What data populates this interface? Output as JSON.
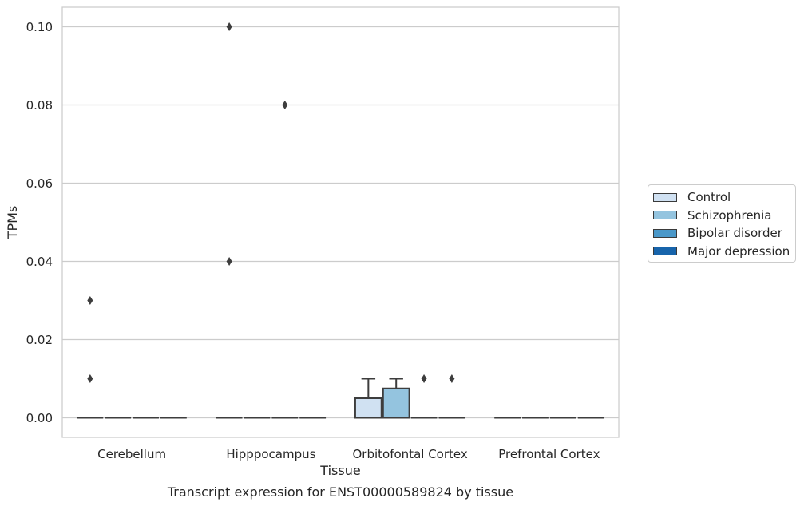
{
  "chart_data": {
    "type": "box",
    "xlabel": "Tissue",
    "ylabel": "TPMs",
    "caption": "Transcript expression for ENST00000589824 by tissue",
    "categories": [
      "Cerebellum",
      "Hipppocampus",
      "Orbitofontal Cortex",
      "Prefrontal Cortex"
    ],
    "ylim": [
      -0.005,
      0.105
    ],
    "yticks": [
      "0.00",
      "0.02",
      "0.04",
      "0.06",
      "0.08",
      "0.10"
    ],
    "grid": true,
    "legend_position": "right",
    "series": [
      {
        "name": "Control",
        "color": "#d0e1f2",
        "boxes": [
          {
            "q1": 0,
            "median": 0,
            "q3": 0,
            "whisker_low": 0,
            "whisker_high": 0,
            "outliers": [
              0.03,
              0.01
            ]
          },
          {
            "q1": 0,
            "median": 0,
            "q3": 0,
            "whisker_low": 0,
            "whisker_high": 0,
            "outliers": [
              0.1,
              0.04
            ]
          },
          {
            "q1": 0,
            "median": 0,
            "q3": 0.005,
            "whisker_low": 0,
            "whisker_high": 0.01,
            "outliers": []
          },
          {
            "q1": 0,
            "median": 0,
            "q3": 0,
            "whisker_low": 0,
            "whisker_high": 0,
            "outliers": []
          }
        ]
      },
      {
        "name": "Schizophrenia",
        "color": "#94c4df",
        "boxes": [
          {
            "q1": 0,
            "median": 0,
            "q3": 0,
            "whisker_low": 0,
            "whisker_high": 0,
            "outliers": []
          },
          {
            "q1": 0,
            "median": 0,
            "q3": 0,
            "whisker_low": 0,
            "whisker_high": 0,
            "outliers": []
          },
          {
            "q1": 0,
            "median": 0,
            "q3": 0.0075,
            "whisker_low": 0,
            "whisker_high": 0.01,
            "outliers": []
          },
          {
            "q1": 0,
            "median": 0,
            "q3": 0,
            "whisker_low": 0,
            "whisker_high": 0,
            "outliers": []
          }
        ]
      },
      {
        "name": "Bipolar disorder",
        "color": "#4a98c9",
        "boxes": [
          {
            "q1": 0,
            "median": 0,
            "q3": 0,
            "whisker_low": 0,
            "whisker_high": 0,
            "outliers": []
          },
          {
            "q1": 0,
            "median": 0,
            "q3": 0,
            "whisker_low": 0,
            "whisker_high": 0,
            "outliers": [
              0.08
            ]
          },
          {
            "q1": 0,
            "median": 0,
            "q3": 0,
            "whisker_low": 0,
            "whisker_high": 0,
            "outliers": [
              0.01
            ]
          },
          {
            "q1": 0,
            "median": 0,
            "q3": 0,
            "whisker_low": 0,
            "whisker_high": 0,
            "outliers": []
          }
        ]
      },
      {
        "name": "Major depression",
        "color": "#1764ab",
        "boxes": [
          {
            "q1": 0,
            "median": 0,
            "q3": 0,
            "whisker_low": 0,
            "whisker_high": 0,
            "outliers": []
          },
          {
            "q1": 0,
            "median": 0,
            "q3": 0,
            "whisker_low": 0,
            "whisker_high": 0,
            "outliers": []
          },
          {
            "q1": 0,
            "median": 0,
            "q3": 0,
            "whisker_low": 0,
            "whisker_high": 0,
            "outliers": [
              0.01
            ]
          },
          {
            "q1": 0,
            "median": 0,
            "q3": 0,
            "whisker_low": 0,
            "whisker_high": 0,
            "outliers": []
          }
        ]
      }
    ]
  }
}
